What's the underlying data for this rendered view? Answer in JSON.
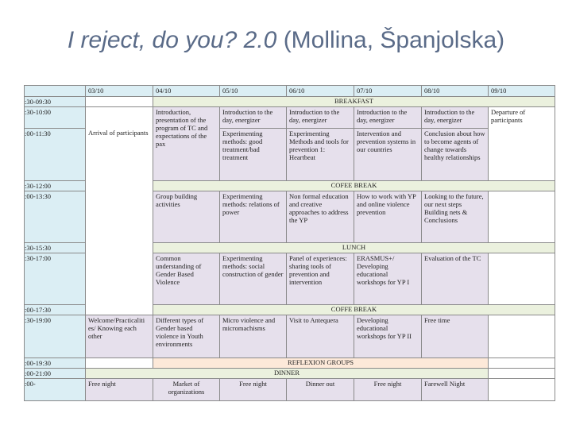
{
  "header": {
    "title_italic": "I reject, do you? 2.0",
    "title_rest": "(Mollina, Španjolska)"
  },
  "table": {
    "columns": [
      "03/10",
      "04/10",
      "05/10",
      "06/10",
      "07/10",
      "08/10",
      "09/10"
    ],
    "times": [
      ":30-09:30",
      ":30-10:00",
      ":00-11:30",
      ":30-12:00",
      ":00-13:30",
      ":30-15:30",
      ":30-17:00",
      ":00-17:30",
      ":30-19:00",
      ":00-19:30",
      ":00-21:00",
      ":00-"
    ],
    "breaks": [
      "BREAKFAST",
      "COFEE BREAK",
      "LUNCH",
      "COFFE BREAK",
      "REFLEXION GROUPS",
      "DINNER"
    ],
    "cells": [
      "Arrival of participants",
      "Introduction, presentation of the program of TC and expectations of the pax",
      "Introduction to the day, energizer",
      "Introduction to the day, energizer",
      "Introduction to the day, energizer",
      "Introduction to the day, energizer",
      "Departure of participants",
      "Experimenting methods: good treatment/bad treatment",
      "Experimenting Methods and tools for prevention 1: Heartbeat",
      "Intervention and prevention systems in our countries",
      "Conclusion about how to become agents of change towards healthy relationships",
      "Group building activities",
      "Experimenting methods: relations of power",
      "Non formal education and creative approaches to address the YP",
      "How to work with YP and online violence prevention",
      "Looking to the future, our next steps Building nets & Conclusions",
      "Common understanding of Gender Based Violence",
      "Experimenting methods: social construction of gender",
      "Panel of experiences: sharing tools of prevention and intervention",
      "ERASMUS+/ Developing educational workshops for YP I",
      "Evaluation of the TC",
      "Welcome/Practicaliti es/ Knowing each other",
      "Different types of Gender based violence in Youth environments",
      "Micro violence and micromachisms",
      "Visit to Antequera",
      "Developing educational workshops for YP II",
      "Free time",
      "Free night",
      "Market of organizations",
      "Free night",
      "Dinner out",
      "Free night",
      "Farewell Night"
    ]
  }
}
